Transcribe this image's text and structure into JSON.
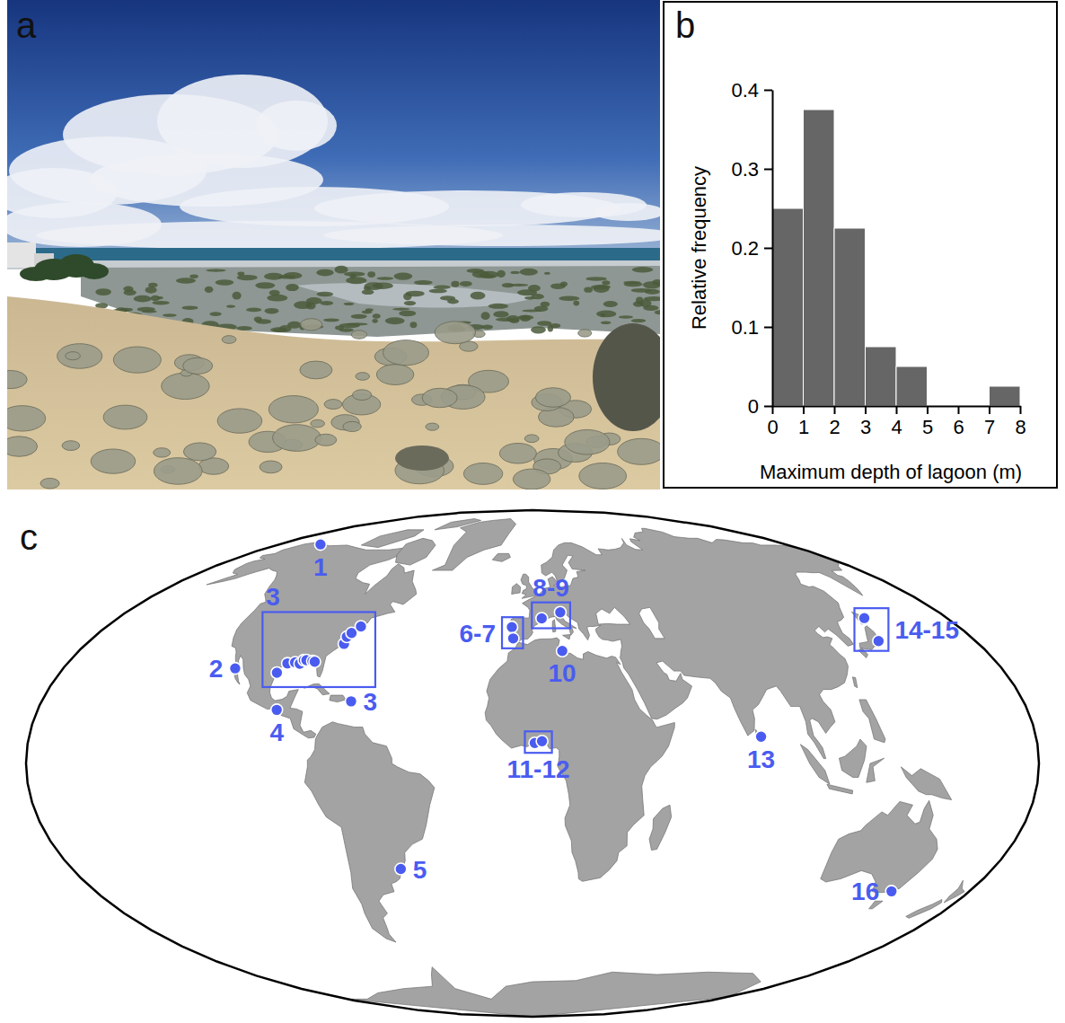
{
  "photo": {
    "panel": "a"
  },
  "chart_data": [
    {
      "panel": "b",
      "type": "histogram",
      "bins": [
        0,
        1,
        2,
        3,
        4,
        5,
        6,
        7,
        8
      ],
      "values": [
        0.25,
        0.375,
        0.225,
        0.075,
        0.05,
        0,
        0,
        0.025
      ],
      "color": "#666666",
      "xlabel": "Maximum depth of lagoon (m)",
      "ylabel": "Relative frequency",
      "xlim": [
        0,
        8
      ],
      "ylim": [
        0,
        0.4
      ],
      "xticks": [
        0,
        1,
        2,
        3,
        4,
        5,
        6,
        7,
        8
      ],
      "yticks": [
        0,
        0.1,
        0.2,
        0.3,
        0.4
      ]
    },
    {
      "panel": "c",
      "type": "map",
      "color": "#4a5cf0",
      "sites": [
        {
          "label": "1",
          "marker": "circle",
          "points": [
            [
              -150,
              70.3
            ]
          ]
        },
        {
          "label": "2",
          "marker": "circle",
          "points": [
            [
              -114,
              27.8
            ]
          ]
        },
        {
          "label": "3",
          "marker": "box",
          "points": [
            [
              -97.3,
              26.5
            ],
            [
              -94.8,
              29.3
            ],
            [
              -92,
              29.6
            ],
            [
              -90,
              29.2
            ],
            [
              -89,
              30.3
            ],
            [
              -88,
              30.3
            ],
            [
              -85.5,
              30
            ],
            [
              -84.5,
              29.8
            ],
            [
              -76,
              35.3
            ],
            [
              -76.2,
              37.5
            ],
            [
              -75,
              38.7
            ],
            [
              -72.5,
              40.8
            ]
          ]
        },
        {
          "label": "3",
          "marker": "circle",
          "points": [
            [
              -66.5,
              18
            ]
          ]
        },
        {
          "label": "4",
          "marker": "circle",
          "points": [
            [
              -93,
              15.5
            ]
          ]
        },
        {
          "label": "5",
          "marker": "circle",
          "points": [
            [
              -51.5,
              -31
            ]
          ]
        },
        {
          "label": "6-7",
          "marker": "box",
          "points": [
            [
              -8.7,
              40.6
            ],
            [
              -7.9,
              37
            ]
          ]
        },
        {
          "label": "8-9",
          "marker": "box",
          "points": [
            [
              4,
              43.4
            ],
            [
              12.3,
              45.4
            ]
          ]
        },
        {
          "label": "10",
          "marker": "circle",
          "points": [
            [
              11.8,
              33.1
            ]
          ]
        },
        {
          "label": "11-12",
          "marker": "box",
          "points": [
            [
              0.8,
              5.9
            ],
            [
              3.4,
              6.4
            ]
          ]
        },
        {
          "label": "13",
          "marker": "circle",
          "points": [
            [
              81.7,
              7.7
            ]
          ]
        },
        {
          "label": "14-15",
          "marker": "box",
          "points": [
            [
              144,
              43.5
            ],
            [
              140.5,
              36.2
            ]
          ]
        },
        {
          "label": "16",
          "marker": "circle",
          "points": [
            [
              147.8,
              -37.9
            ]
          ]
        }
      ]
    }
  ]
}
